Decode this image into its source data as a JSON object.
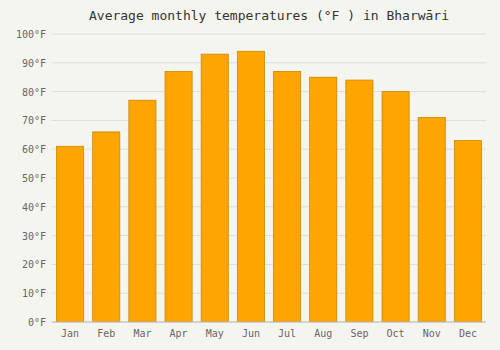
{
  "chart_data": {
    "type": "bar",
    "title": "Average monthly temperatures (°F ) in Bharwāri",
    "categories": [
      "Jan",
      "Feb",
      "Mar",
      "Apr",
      "May",
      "Jun",
      "Jul",
      "Aug",
      "Sep",
      "Oct",
      "Nov",
      "Dec"
    ],
    "values": [
      61,
      66,
      77,
      87,
      93,
      94,
      87,
      85,
      84,
      80,
      71,
      63
    ],
    "color": "#FFA500",
    "ylim": [
      0,
      100
    ],
    "yticks": [
      {
        "value": 0,
        "label": "0°F"
      },
      {
        "value": 10,
        "label": "10°F"
      },
      {
        "value": 20,
        "label": "20°F"
      },
      {
        "value": 30,
        "label": "30°F"
      },
      {
        "value": 40,
        "label": "40°F"
      },
      {
        "value": 50,
        "label": "50°F"
      },
      {
        "value": 60,
        "label": "60°F"
      },
      {
        "value": 70,
        "label": "70°F"
      },
      {
        "value": 80,
        "label": "80°F"
      },
      {
        "value": 90,
        "label": "90°F"
      },
      {
        "value": 100,
        "label": "100°F"
      }
    ],
    "grid": true
  }
}
